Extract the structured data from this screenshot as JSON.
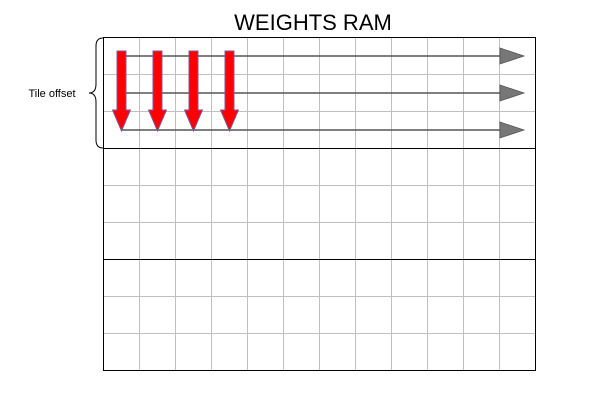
{
  "diagram": {
    "title": "WEIGHTS RAM",
    "tile_offset_label": "Tile offset",
    "grid": {
      "columns": 12,
      "rows": 9,
      "tile_rows": 3,
      "tiles": 3
    },
    "horizontal_arrows": 3,
    "vertical_arrows": 4,
    "colors": {
      "grid_line": "#c0c0c0",
      "border": "#000000",
      "horizontal_arrow": "#555555",
      "horizontal_arrow_head": "#777777",
      "vertical_arrow_fill": "#ff0000",
      "vertical_arrow_stroke": "#7a5a9e"
    }
  }
}
